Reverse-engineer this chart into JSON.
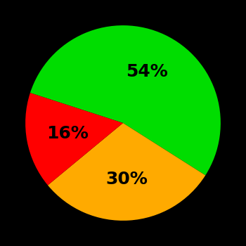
{
  "slices": [
    54,
    30,
    16
  ],
  "colors": [
    "#00dd00",
    "#ffaa00",
    "#ff0000"
  ],
  "labels": [
    "54%",
    "30%",
    "16%"
  ],
  "background_color": "#000000",
  "text_color": "#000000",
  "label_fontsize": 18,
  "label_fontweight": "bold",
  "startangle": 162,
  "figsize": [
    3.5,
    3.5
  ],
  "dpi": 100
}
